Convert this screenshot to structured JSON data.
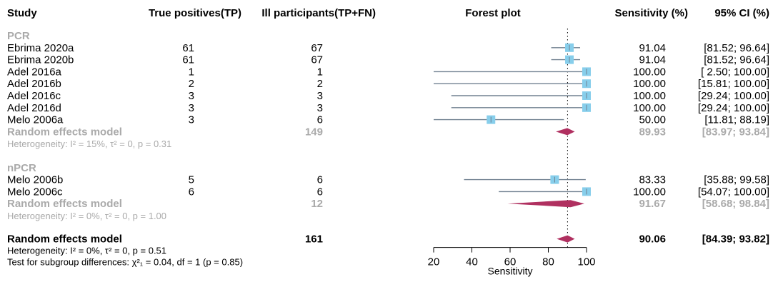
{
  "headers": {
    "study": "Study",
    "tp": "True positives(TP)",
    "ill": "Ill participants(TP+FN)",
    "plot": "Forest plot",
    "sens": "Sensitivity (%)",
    "ci": "95% CI (%)"
  },
  "colors": {
    "square": "#87ceeb",
    "ci_line": "#708090",
    "diamond": "#b03060",
    "group_gray": "#aaaaaa",
    "ref_line": "#000000"
  },
  "chart_data": {
    "type": "forest",
    "xlabel": "Sensitivity",
    "xticks": [
      20,
      40,
      60,
      80,
      100
    ],
    "xlim": [
      20,
      100
    ],
    "reference_line": 90.06,
    "groups": [
      {
        "name": "PCR",
        "studies": [
          {
            "study": "Ebrima 2020a",
            "tp": "61",
            "n": "67",
            "est": 91.04,
            "lo": 81.52,
            "hi": 96.64,
            "est_text": "91.04",
            "ci_text": "[81.52;  96.64]"
          },
          {
            "study": "Ebrima 2020b",
            "tp": "61",
            "n": "67",
            "est": 91.04,
            "lo": 81.52,
            "hi": 96.64,
            "est_text": "91.04",
            "ci_text": "[81.52;  96.64]"
          },
          {
            "study": "Adel 2016a",
            "tp": "1",
            "n": "1",
            "est": 100.0,
            "lo": 2.5,
            "hi": 100.0,
            "est_text": "100.00",
            "ci_text": "[ 2.50; 100.00]"
          },
          {
            "study": "Adel 2016b",
            "tp": "2",
            "n": "2",
            "est": 100.0,
            "lo": 15.81,
            "hi": 100.0,
            "est_text": "100.00",
            "ci_text": "[15.81; 100.00]"
          },
          {
            "study": "Adel 2016c",
            "tp": "3",
            "n": "3",
            "est": 100.0,
            "lo": 29.24,
            "hi": 100.0,
            "est_text": "100.00",
            "ci_text": "[29.24; 100.00]"
          },
          {
            "study": "Adel 2016d",
            "tp": "3",
            "n": "3",
            "est": 100.0,
            "lo": 29.24,
            "hi": 100.0,
            "est_text": "100.00",
            "ci_text": "[29.24; 100.00]"
          },
          {
            "study": "Melo 2006a",
            "tp": "3",
            "n": "6",
            "est": 50.0,
            "lo": 11.81,
            "hi": 88.19,
            "est_text": "50.00",
            "ci_text": "[11.81;  88.19]"
          }
        ],
        "summary": {
          "label": "Random effects model",
          "n": "149",
          "est": 89.93,
          "lo": 83.97,
          "hi": 93.84,
          "est_text": "89.93",
          "ci_text": "[83.97;  93.84]"
        },
        "heterogeneity": "Heterogeneity: I² = 15%, τ² = 0, p = 0.31"
      },
      {
        "name": "nPCR",
        "studies": [
          {
            "study": "Melo 2006b",
            "tp": "5",
            "n": "6",
            "est": 83.33,
            "lo": 35.88,
            "hi": 99.58,
            "est_text": "83.33",
            "ci_text": "[35.88;  99.58]"
          },
          {
            "study": "Melo 2006c",
            "tp": "6",
            "n": "6",
            "est": 100.0,
            "lo": 54.07,
            "hi": 100.0,
            "est_text": "100.00",
            "ci_text": "[54.07; 100.00]"
          }
        ],
        "summary": {
          "label": "Random effects model",
          "n": "12",
          "est": 91.67,
          "lo": 58.68,
          "hi": 98.84,
          "est_text": "91.67",
          "ci_text": "[58.68;  98.84]"
        },
        "heterogeneity": "Heterogeneity: I² = 0%, τ² = 0, p = 1.00"
      }
    ],
    "overall": {
      "label": "Random effects model",
      "n": "161",
      "est": 90.06,
      "lo": 84.39,
      "hi": 93.82,
      "est_text": "90.06",
      "ci_text": "[84.39;  93.82]"
    },
    "overall_heterogeneity": "Heterogeneity: I² = 0%, τ² = 0, p = 0.51",
    "subgroup_test": "Test for subgroup differences: χ²₁ = 0.04, df = 1 (p = 0.85)"
  }
}
